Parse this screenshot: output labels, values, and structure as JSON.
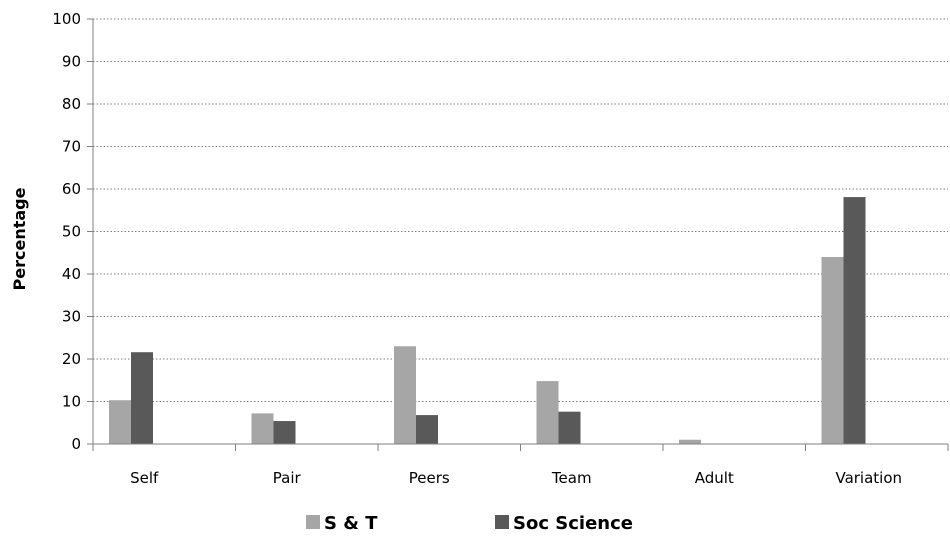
{
  "chart_data": {
    "type": "bar",
    "title": "",
    "xlabel": "",
    "ylabel": "Percentage",
    "ylim": [
      0,
      100
    ],
    "yticks": [
      0,
      10,
      20,
      30,
      40,
      50,
      60,
      70,
      80,
      90,
      100
    ],
    "grid": "horizontal dotted",
    "legend_position": "bottom",
    "categories": [
      "Self",
      "Pair",
      "Peers",
      "Team",
      "Adult",
      "Variation"
    ],
    "series": [
      {
        "name": "S & T",
        "color": "#a6a6a6",
        "values": [
          10.3,
          7.2,
          23.0,
          14.8,
          1.0,
          44.0
        ]
      },
      {
        "name": "Soc Science",
        "color": "#595959",
        "values": [
          21.6,
          5.4,
          6.8,
          7.6,
          0,
          58.1
        ]
      }
    ]
  }
}
